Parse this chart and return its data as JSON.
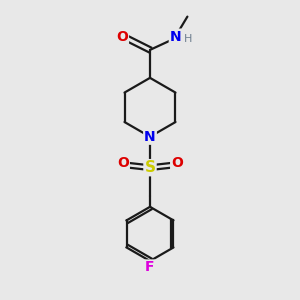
{
  "background_color": "#e8e8e8",
  "bond_color": "#1a1a1a",
  "atom_colors": {
    "O": "#dd0000",
    "N_amide": "#0000ee",
    "N_pip": "#0000ee",
    "H": "#708090",
    "S": "#cccc00",
    "F": "#dd00dd",
    "C": "#1a1a1a"
  },
  "line_width": 1.6,
  "figsize": [
    3.0,
    3.0
  ],
  "dpi": 100
}
